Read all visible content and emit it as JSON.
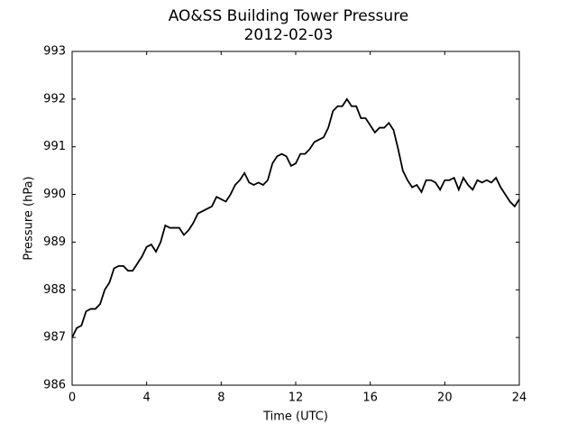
{
  "chart_data": {
    "type": "line",
    "title": "AO&SS Building Tower Pressure",
    "subtitle": "2012-02-03",
    "x_label": "Time (UTC)",
    "y_label": "Pressure (hPa)",
    "xlim": [
      0,
      24
    ],
    "xticks": [
      0,
      4,
      8,
      12,
      16,
      20,
      24
    ],
    "ylim": [
      986,
      993
    ],
    "yticks": [
      986,
      987,
      988,
      989,
      990,
      991,
      992,
      993
    ],
    "x": [
      0,
      0.25,
      0.5,
      0.75,
      1,
      1.25,
      1.5,
      1.75,
      2,
      2.25,
      2.5,
      2.75,
      3,
      3.25,
      3.5,
      3.75,
      4,
      4.25,
      4.5,
      4.75,
      5,
      5.25,
      5.5,
      5.75,
      6,
      6.25,
      6.5,
      6.75,
      7,
      7.25,
      7.5,
      7.75,
      8,
      8.25,
      8.5,
      8.75,
      9,
      9.25,
      9.5,
      9.75,
      10,
      10.25,
      10.5,
      10.75,
      11,
      11.25,
      11.5,
      11.75,
      12,
      12.25,
      12.5,
      12.75,
      13,
      13.25,
      13.5,
      13.75,
      14,
      14.25,
      14.5,
      14.75,
      15,
      15.25,
      15.5,
      15.75,
      16,
      16.25,
      16.5,
      16.75,
      17,
      17.25,
      17.5,
      17.75,
      18,
      18.25,
      18.5,
      18.75,
      19,
      19.25,
      19.5,
      19.75,
      20,
      20.25,
      20.5,
      20.75,
      21,
      21.25,
      21.5,
      21.75,
      22,
      22.25,
      22.5,
      22.75,
      23,
      23.25,
      23.5,
      23.75,
      24
    ],
    "series": [
      {
        "name": "Pressure",
        "color": "#000000",
        "values": [
          987.0,
          987.2,
          987.25,
          987.55,
          987.6,
          987.6,
          987.7,
          988.0,
          988.15,
          988.45,
          988.5,
          988.5,
          988.4,
          988.4,
          988.55,
          988.7,
          988.9,
          988.95,
          988.8,
          989.0,
          989.35,
          989.3,
          989.3,
          989.3,
          989.15,
          989.25,
          989.4,
          989.6,
          989.65,
          989.7,
          989.75,
          989.95,
          989.9,
          989.85,
          990.0,
          990.2,
          990.3,
          990.45,
          990.25,
          990.2,
          990.25,
          990.2,
          990.3,
          990.65,
          990.8,
          990.85,
          990.8,
          990.6,
          990.65,
          990.85,
          990.85,
          990.95,
          991.1,
          991.15,
          991.2,
          991.4,
          991.75,
          991.85,
          991.85,
          992.0,
          991.85,
          991.85,
          991.6,
          991.6,
          991.45,
          991.3,
          991.4,
          991.4,
          991.5,
          991.35,
          990.95,
          990.5,
          990.3,
          990.15,
          990.2,
          990.05,
          990.3,
          990.3,
          990.25,
          990.1,
          990.3,
          990.3,
          990.35,
          990.1,
          990.35,
          990.2,
          990.1,
          990.3,
          990.25,
          990.3,
          990.25,
          990.35,
          990.15,
          990.0,
          989.85,
          989.75,
          989.9
        ]
      }
    ]
  }
}
